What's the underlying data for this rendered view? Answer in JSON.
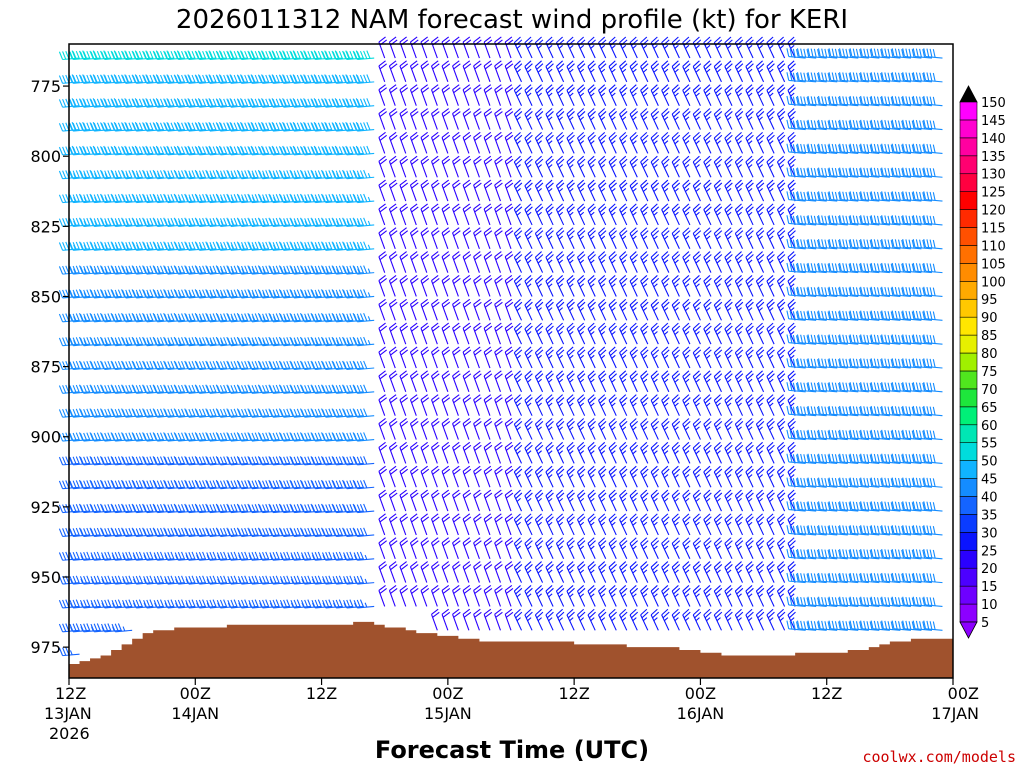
{
  "chart_data": {
    "type": "wind-profile",
    "title": "2026011312 NAM forecast wind profile (kt) for KERI",
    "xlabel": "Forecast Time (UTC)",
    "ylabel": "",
    "y_ticks": [
      {
        "value": 775,
        "label": "775"
      },
      {
        "value": 800,
        "label": "800"
      },
      {
        "value": 825,
        "label": "825"
      },
      {
        "value": 850,
        "label": "850"
      },
      {
        "value": 875,
        "label": "875"
      },
      {
        "value": 900,
        "label": "900"
      },
      {
        "value": 925,
        "label": "925"
      },
      {
        "value": 950,
        "label": "950"
      },
      {
        "value": 975,
        "label": "975"
      }
    ],
    "ylim": [
      760,
      986
    ],
    "x_range_hours": [
      0,
      84
    ],
    "x_ticks": [
      {
        "hour": 0,
        "label": "12Z",
        "line2": "13JAN",
        "line3": "2026"
      },
      {
        "hour": 12,
        "label": "00Z",
        "line2": "14JAN",
        "line3": ""
      },
      {
        "hour": 24,
        "label": "12Z",
        "line2": "",
        "line3": ""
      },
      {
        "hour": 36,
        "label": "00Z",
        "line2": "15JAN",
        "line3": ""
      },
      {
        "hour": 48,
        "label": "12Z",
        "line2": "",
        "line3": ""
      },
      {
        "hour": 60,
        "label": "00Z",
        "line2": "16JAN",
        "line3": ""
      },
      {
        "hour": 72,
        "label": "12Z",
        "line2": "",
        "line3": ""
      },
      {
        "hour": 84,
        "label": "00Z",
        "line2": "17JAN",
        "line3": ""
      }
    ],
    "colorbar": {
      "unit": "kt",
      "levels": [
        5,
        10,
        15,
        20,
        25,
        30,
        35,
        40,
        45,
        50,
        55,
        60,
        65,
        70,
        75,
        80,
        85,
        90,
        95,
        100,
        105,
        110,
        115,
        120,
        125,
        130,
        135,
        140,
        145,
        150
      ],
      "labels": [
        "5",
        "10",
        "15",
        "20",
        "25",
        "30",
        "35",
        "40",
        "45",
        "50",
        "55",
        "60",
        "65",
        "70",
        "75",
        "80",
        "85",
        "90",
        "95",
        "100",
        "105",
        "110",
        "115",
        "120",
        "125",
        "130",
        "135",
        "140",
        "145",
        "150"
      ],
      "colors": [
        "#8c00ff",
        "#6e00ff",
        "#4c00ff",
        "#2a00ff",
        "#0a14ff",
        "#0a3cff",
        "#1464ff",
        "#148cff",
        "#10b4ff",
        "#00dcdc",
        "#00e6b4",
        "#00f078",
        "#1ee63c",
        "#50e61e",
        "#a0f000",
        "#e6f000",
        "#ffe600",
        "#ffc800",
        "#ffaa00",
        "#ff8c00",
        "#ff7000",
        "#ff5000",
        "#ff2a00",
        "#ff0000",
        "#ff0040",
        "#ff0070",
        "#ff00a0",
        "#ff00d0",
        "#ff00ff",
        "#000000"
      ]
    },
    "surface_pressure_mb": [
      [
        0,
        981
      ],
      [
        1,
        980
      ],
      [
        2,
        979
      ],
      [
        3,
        978
      ],
      [
        4,
        976
      ],
      [
        5,
        974
      ],
      [
        6,
        972
      ],
      [
        7,
        970
      ],
      [
        8,
        969
      ],
      [
        9,
        969
      ],
      [
        10,
        968
      ],
      [
        11,
        968
      ],
      [
        12,
        968
      ],
      [
        13,
        968
      ],
      [
        14,
        968
      ],
      [
        15,
        967
      ],
      [
        16,
        967
      ],
      [
        17,
        967
      ],
      [
        18,
        967
      ],
      [
        19,
        967
      ],
      [
        20,
        967
      ],
      [
        21,
        967
      ],
      [
        22,
        967
      ],
      [
        23,
        967
      ],
      [
        24,
        967
      ],
      [
        25,
        967
      ],
      [
        26,
        967
      ],
      [
        27,
        966
      ],
      [
        28,
        966
      ],
      [
        29,
        967
      ],
      [
        30,
        968
      ],
      [
        31,
        968
      ],
      [
        32,
        969
      ],
      [
        33,
        970
      ],
      [
        34,
        970
      ],
      [
        35,
        971
      ],
      [
        36,
        971
      ],
      [
        37,
        972
      ],
      [
        38,
        972
      ],
      [
        39,
        973
      ],
      [
        40,
        973
      ],
      [
        41,
        973
      ],
      [
        42,
        973
      ],
      [
        43,
        973
      ],
      [
        44,
        973
      ],
      [
        45,
        973
      ],
      [
        46,
        973
      ],
      [
        47,
        973
      ],
      [
        48,
        974
      ],
      [
        49,
        974
      ],
      [
        50,
        974
      ],
      [
        51,
        974
      ],
      [
        52,
        974
      ],
      [
        53,
        975
      ],
      [
        54,
        975
      ],
      [
        55,
        975
      ],
      [
        56,
        975
      ],
      [
        57,
        975
      ],
      [
        58,
        976
      ],
      [
        59,
        976
      ],
      [
        60,
        977
      ],
      [
        61,
        977
      ],
      [
        62,
        978
      ],
      [
        63,
        978
      ],
      [
        64,
        978
      ],
      [
        65,
        978
      ],
      [
        66,
        978
      ],
      [
        67,
        978
      ],
      [
        68,
        978
      ],
      [
        69,
        977
      ],
      [
        70,
        977
      ],
      [
        71,
        977
      ],
      [
        72,
        977
      ],
      [
        73,
        977
      ],
      [
        74,
        976
      ],
      [
        75,
        976
      ],
      [
        76,
        975
      ],
      [
        77,
        974
      ],
      [
        78,
        973
      ],
      [
        79,
        973
      ],
      [
        80,
        972
      ],
      [
        81,
        972
      ],
      [
        82,
        972
      ],
      [
        83,
        972
      ],
      [
        84,
        972
      ]
    ],
    "wind_regimes": [
      {
        "from_hour": 0,
        "to_hour": 30,
        "direction_deg": 265,
        "speed_kt_low_levels": 35,
        "speed_kt_mid_levels": 50
      },
      {
        "from_hour": 30,
        "to_hour": 43,
        "direction_deg": 340,
        "speed_kt": 20
      },
      {
        "from_hour": 43,
        "to_hour": 70,
        "direction_deg": 335,
        "speed_kt": 25
      },
      {
        "from_hour": 70,
        "to_hour": 84,
        "direction_deg": 275,
        "speed_kt": 40
      }
    ],
    "credit": "coolwx.com/models"
  }
}
